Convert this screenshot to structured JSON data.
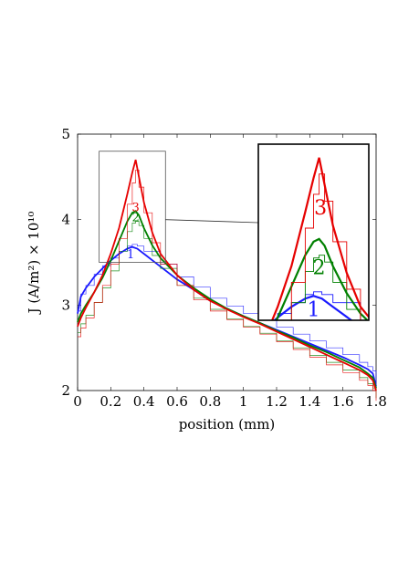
{
  "chart_data": {
    "type": "line",
    "xlabel": "position (mm)",
    "ylabel": "J (A/m²) × 10¹⁰",
    "xlim": [
      0,
      1.8
    ],
    "ylim": [
      2,
      5
    ],
    "xticks": [
      "0",
      "0.2",
      "0.4",
      "0.6",
      "0.8",
      "1",
      "1.2",
      "1.4",
      "1.6",
      "1.8"
    ],
    "yticks": [
      "2",
      "3",
      "4",
      "5"
    ],
    "grid": false,
    "legend": "none",
    "series": [
      {
        "name": "1",
        "color": "#1a1aff",
        "x": [
          0,
          0.02,
          0.05,
          0.1,
          0.15,
          0.2,
          0.25,
          0.3,
          0.33,
          0.36,
          0.4,
          0.5,
          0.6,
          0.7,
          0.8,
          0.9,
          1.0,
          1.1,
          1.2,
          1.3,
          1.4,
          1.5,
          1.6,
          1.7,
          1.75,
          1.78,
          1.8
        ],
        "y": [
          2.9,
          3.1,
          3.2,
          3.33,
          3.43,
          3.52,
          3.6,
          3.66,
          3.68,
          3.66,
          3.6,
          3.45,
          3.3,
          3.18,
          3.05,
          2.96,
          2.87,
          2.79,
          2.71,
          2.63,
          2.55,
          2.47,
          2.39,
          2.3,
          2.25,
          2.2,
          2.05
        ]
      },
      {
        "name": "2",
        "color": "#008000",
        "x": [
          0,
          0.02,
          0.05,
          0.1,
          0.15,
          0.2,
          0.25,
          0.3,
          0.33,
          0.35,
          0.37,
          0.4,
          0.45,
          0.5,
          0.6,
          0.7,
          0.8,
          0.9,
          1.0,
          1.1,
          1.2,
          1.3,
          1.4,
          1.5,
          1.6,
          1.7,
          1.75,
          1.78,
          1.8
        ],
        "y": [
          2.8,
          2.9,
          3.0,
          3.15,
          3.32,
          3.52,
          3.75,
          3.98,
          4.08,
          4.1,
          4.05,
          3.9,
          3.7,
          3.55,
          3.35,
          3.2,
          3.07,
          2.96,
          2.87,
          2.79,
          2.7,
          2.62,
          2.53,
          2.45,
          2.36,
          2.27,
          2.2,
          2.15,
          2.03
        ]
      },
      {
        "name": "3",
        "color": "#e60000",
        "x": [
          0,
          0.02,
          0.05,
          0.1,
          0.15,
          0.2,
          0.25,
          0.3,
          0.33,
          0.35,
          0.37,
          0.4,
          0.45,
          0.5,
          0.6,
          0.7,
          0.8,
          0.9,
          1.0,
          1.1,
          1.2,
          1.3,
          1.4,
          1.5,
          1.6,
          1.7,
          1.75,
          1.78,
          1.8
        ],
        "y": [
          2.75,
          2.85,
          2.97,
          3.15,
          3.35,
          3.6,
          3.9,
          4.3,
          4.55,
          4.7,
          4.5,
          4.2,
          3.85,
          3.6,
          3.35,
          3.18,
          3.05,
          2.95,
          2.86,
          2.78,
          2.69,
          2.6,
          2.51,
          2.42,
          2.33,
          2.24,
          2.18,
          2.12,
          2.0
        ]
      }
    ],
    "inset": {
      "xlim": [
        0.13,
        0.53
      ],
      "ylim": [
        3.5,
        4.8
      ],
      "labels": [
        "1",
        "2",
        "3"
      ]
    }
  }
}
